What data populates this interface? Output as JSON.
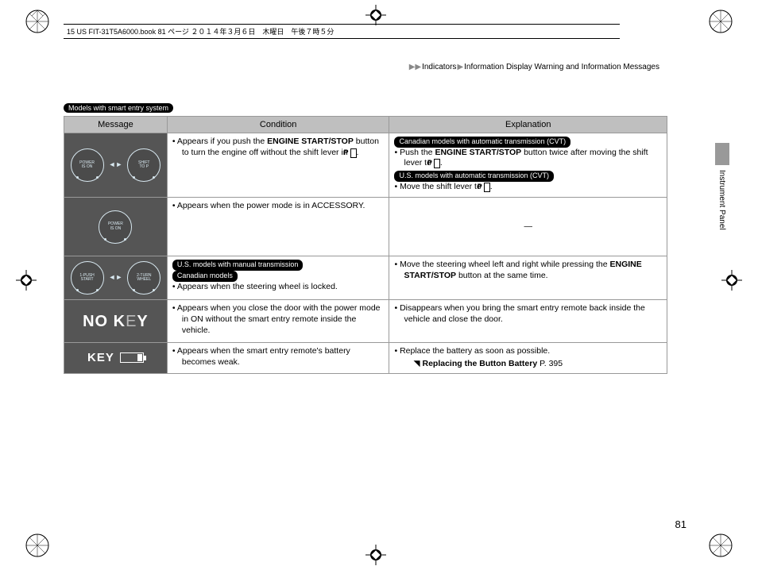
{
  "file_header": "15 US FIT-31T5A6000.book  81 ページ  ２０１４年３月６日　木曜日　午後７時５分",
  "breadcrumb": {
    "a": "Indicators",
    "b": "Information Display Warning and Information Messages"
  },
  "intro_badge": "Models with smart entry system",
  "side_tab": "Instrument Panel",
  "page_number": "81",
  "headers": {
    "msg": "Message",
    "cond": "Condition",
    "expl": "Explanation"
  },
  "row1": {
    "gauge_left": "POWER\nIS ON",
    "gauge_right": "SHIFT\nTO P",
    "cond_prefix": "Appears if you push the ",
    "cond_bold": "ENGINE START/STOP",
    "cond_mid": " button to turn the engine off without the shift lever in ",
    "cond_p": "P",
    "cond_suffix": ".",
    "expl_badge1": "Canadian models with automatic transmission (CVT)",
    "expl1_prefix": "Push the ",
    "expl1_bold": "ENGINE START/STOP",
    "expl1_mid": " button twice after moving the shift lever to ",
    "expl1_p": "P",
    "expl1_suffix": ".",
    "expl_badge2": "U.S. models with automatic transmission (CVT)",
    "expl2_prefix": "Move the shift lever to ",
    "expl2_p": "P",
    "expl2_suffix": "."
  },
  "row2": {
    "gauge": "POWER\nIS ON",
    "cond": "Appears when the power mode is in ACCESSORY.",
    "expl": "—"
  },
  "row3": {
    "gauge_left": "1-PUSH\nSTART",
    "gauge_right": "2-TURN\nWHEEL",
    "badge1": "U.S. models with manual transmission",
    "badge2": "Canadian models",
    "cond": "Appears when the steering wheel is locked.",
    "expl_prefix": "Move the steering wheel left and right while pressing the ",
    "expl_bold": "ENGINE START/STOP",
    "expl_suffix": " button at the same time."
  },
  "row4": {
    "msg1": "NO K",
    "msg2": "E",
    "msg3": "Y",
    "cond": "Appears when you close the door with the power mode in ON without the smart entry remote inside the vehicle.",
    "expl": "Disappears when you bring the smart entry remote back inside the vehicle and close the door."
  },
  "row5": {
    "msg": "KEY",
    "cond": "Appears when the smart entry remote's battery becomes weak.",
    "expl": "Replace the battery as soon as possible.",
    "ref": "Replacing the Button Battery",
    "ref_page": " P. 395"
  }
}
